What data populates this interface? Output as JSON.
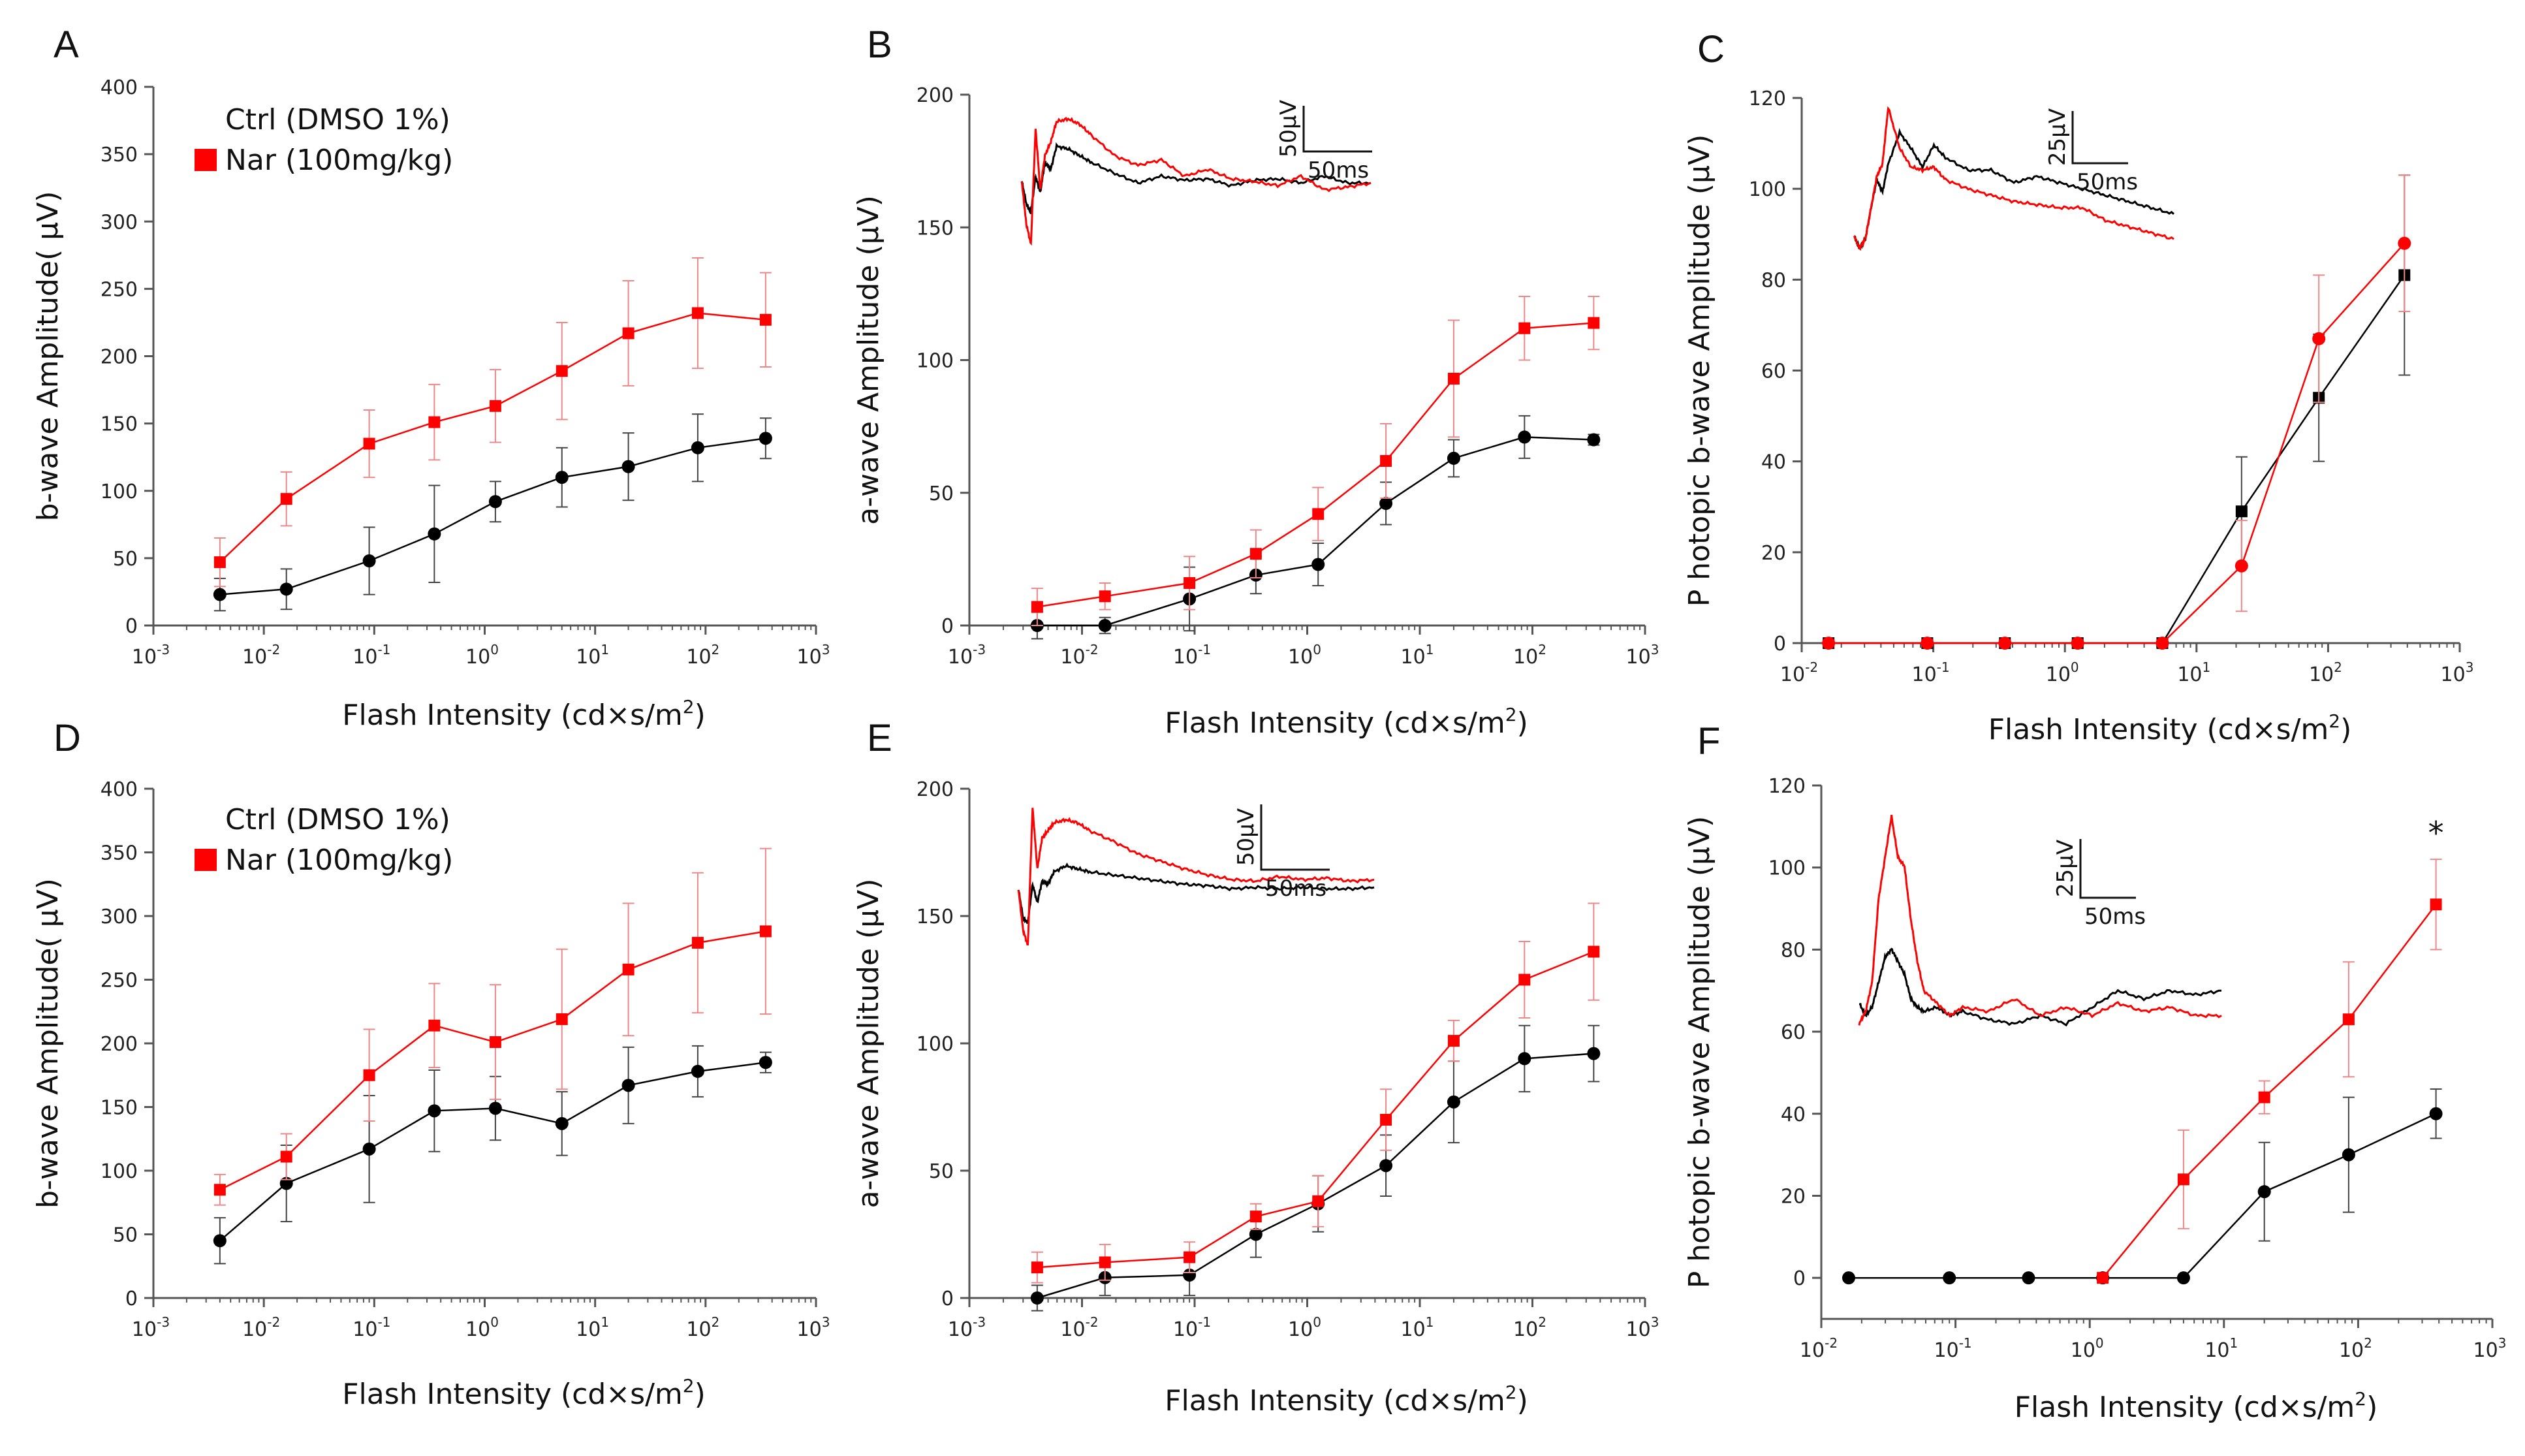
{
  "figure": {
    "colors": {
      "ctrl": "#000000",
      "nar": "#ff0000",
      "axis": "#555555"
    },
    "panels": [
      {
        "letter": "A",
        "legend": {
          "ctrl_label": "Ctrl (DMSO 1%)",
          "nar_label": "Nar (100mg/kg)"
        },
        "scale_bar": null,
        "significance": null,
        "chart_data": {
          "type": "line",
          "xscale": "log",
          "title": "",
          "xlabel": "Flash Intensity (cd×s/m2)",
          "ylabel": "b-wave Amplitude( µV)",
          "xlim_exp": [
            -3,
            3
          ],
          "ylim": [
            0,
            400
          ],
          "yticks": [
            0,
            50,
            100,
            150,
            200,
            250,
            300,
            350,
            400
          ],
          "series": [
            {
              "name": "Ctrl (DMSO 1%)",
              "marker": "circle",
              "x": [
                0.004,
                0.016,
                0.09,
                0.35,
                1.25,
                5,
                20,
                85,
                350
              ],
              "y": [
                23,
                27,
                48,
                68,
                92,
                110,
                118,
                132,
                139
              ],
              "err": [
                12,
                15,
                25,
                36,
                15,
                22,
                25,
                25,
                15
              ]
            },
            {
              "name": "Nar (100mg/kg)",
              "marker": "square",
              "x": [
                0.004,
                0.016,
                0.09,
                0.35,
                1.25,
                5,
                20,
                85,
                350
              ],
              "y": [
                47,
                94,
                135,
                151,
                163,
                189,
                217,
                232,
                227
              ],
              "err": [
                18,
                20,
                25,
                28,
                27,
                36,
                39,
                41,
                35
              ]
            }
          ],
          "inset": null
        }
      },
      {
        "letter": "B",
        "legend": null,
        "scale_bar": {
          "v_label": "50µV",
          "h_label": "50ms"
        },
        "significance": null,
        "chart_data": {
          "type": "line",
          "xscale": "log",
          "title": "",
          "xlabel": "Flash Intensity (cd×s/m2)",
          "ylabel": "a-wave Amplitude (µV)",
          "xlim_exp": [
            -3,
            3
          ],
          "ylim": [
            0,
            200
          ],
          "yticks": [
            0,
            50,
            100,
            150,
            200
          ],
          "series": [
            {
              "name": "Ctrl (DMSO 1%)",
              "marker": "circle",
              "x": [
                0.004,
                0.016,
                0.09,
                0.35,
                1.25,
                5,
                20,
                85,
                350
              ],
              "y": [
                0,
                0,
                10,
                19,
                23,
                46,
                63,
                71,
                70
              ],
              "err": [
                5,
                3,
                12,
                7,
                8,
                8,
                7,
                8,
                2
              ]
            },
            {
              "name": "Nar (100mg/kg)",
              "marker": "square",
              "x": [
                0.004,
                0.016,
                0.09,
                0.35,
                1.25,
                5,
                20,
                85,
                350
              ],
              "y": [
                7,
                11,
                16,
                27,
                42,
                62,
                93,
                112,
                114
              ],
              "err": [
                7,
                5,
                10,
                9,
                10,
                14,
                22,
                12,
                10
              ]
            }
          ],
          "inset": {
            "t_ms": [
              0,
              4,
              8,
              12,
              16,
              20,
              25,
              30,
              40,
              50,
              60,
              80,
              100,
              120,
              140,
              160,
              180,
              200,
              220,
              240,
              260,
              280,
              300
            ],
            "ctrl_uv": [
              147,
              130,
              123,
              150,
              138,
              160,
              155,
              172,
              170,
              165,
              160,
              152,
              145,
              150,
              147,
              148,
              143,
              147,
              148,
              145,
              150,
              145,
              145
            ],
            "nar_uv": [
              147,
              115,
              100,
              185,
              140,
              165,
              175,
              190,
              192,
              188,
              180,
              165,
              158,
              162,
              150,
              155,
              148,
              146,
              143,
              150,
              140,
              142,
              145
            ],
            "ylim_uv": [
              90,
              205
            ]
          }
        }
      },
      {
        "letter": "C",
        "legend": null,
        "scale_bar": {
          "v_label": "25µV",
          "h_label": "50ms"
        },
        "significance": null,
        "chart_data": {
          "type": "line",
          "xscale": "log",
          "title": "",
          "xlabel": "Flash Intensity (cd×s/m2)",
          "ylabel": "P hotopic b-wave Amplitude (µV)",
          "xlim_exp": [
            -2,
            3
          ],
          "ylim": [
            0,
            120
          ],
          "yticks": [
            0,
            20,
            40,
            60,
            80,
            100,
            120
          ],
          "series": [
            {
              "name": "Ctrl (DMSO 1%)",
              "marker": "square",
              "x": [
                0.016,
                0.09,
                0.35,
                1.25,
                5.5,
                22,
                85,
                380
              ],
              "y": [
                0,
                0,
                0,
                0,
                0,
                29,
                54,
                81
              ],
              "err": [
                0,
                0,
                0,
                0,
                0,
                12,
                14,
                22
              ]
            },
            {
              "name": "Nar (100mg/kg)",
              "marker": "circle",
              "x": [
                0.016,
                0.09,
                0.35,
                1.25,
                5.5,
                22,
                85,
                380
              ],
              "y": [
                0,
                0,
                0,
                0,
                0,
                17,
                67,
                88
              ],
              "err": [
                0,
                0,
                0,
                0,
                0,
                10,
                14,
                15
              ]
            }
          ],
          "inset": {
            "t_ms": [
              0,
              5,
              10,
              15,
              20,
              25,
              30,
              40,
              50,
              60,
              70,
              80,
              100,
              120,
              140,
              160,
              180,
              200,
              220,
              240,
              260,
              280
            ],
            "ctrl_uv": [
              77,
              73,
              76,
              86,
              95,
              91,
              100,
              110,
              105,
              99,
              106,
              102,
              98,
              98,
              94,
              96,
              94,
              92,
              90,
              88,
              86,
              84
            ],
            "nar_uv": [
              77,
              73,
              76,
              86,
              96,
              100,
              118,
              105,
              99,
              98,
              99,
              95,
              92,
              90,
              88,
              87,
              86,
              86,
              82,
              80,
              78,
              76
            ],
            "ylim_uv": [
              70,
              120
            ]
          }
        }
      },
      {
        "letter": "D",
        "legend": {
          "ctrl_label": "Ctrl (DMSO 1%)",
          "nar_label": "Nar (100mg/kg)"
        },
        "scale_bar": null,
        "significance": null,
        "chart_data": {
          "type": "line",
          "xscale": "log",
          "title": "",
          "xlabel": "Flash Intensity (cd×s/m2)",
          "ylabel": "b-wave Amplitude( µV)",
          "xlim_exp": [
            -3,
            3
          ],
          "ylim": [
            0,
            400
          ],
          "yticks": [
            0,
            50,
            100,
            150,
            200,
            250,
            300,
            350,
            400
          ],
          "series": [
            {
              "name": "Ctrl (DMSO 1%)",
              "marker": "circle",
              "x": [
                0.004,
                0.016,
                0.09,
                0.35,
                1.25,
                5,
                20,
                85,
                350
              ],
              "y": [
                45,
                90,
                117,
                147,
                149,
                137,
                167,
                178,
                185
              ],
              "err": [
                18,
                30,
                42,
                32,
                25,
                25,
                30,
                20,
                8
              ]
            },
            {
              "name": "Nar (100mg/kg)",
              "marker": "square",
              "x": [
                0.004,
                0.016,
                0.09,
                0.35,
                1.25,
                5,
                20,
                85,
                350
              ],
              "y": [
                85,
                111,
                175,
                214,
                201,
                219,
                258,
                279,
                288
              ],
              "err": [
                12,
                18,
                36,
                33,
                45,
                55,
                52,
                55,
                65
              ]
            }
          ],
          "inset": null
        }
      },
      {
        "letter": "E",
        "legend": null,
        "scale_bar": {
          "v_label": "50µV",
          "h_label": "50ms"
        },
        "significance": null,
        "chart_data": {
          "type": "line",
          "xscale": "log",
          "title": "",
          "xlabel": "Flash Intensity (cd×s/m2)",
          "ylabel": "a-wave Amplitude (µV)",
          "xlim_exp": [
            -3,
            3
          ],
          "ylim": [
            0,
            200
          ],
          "yticks": [
            0,
            50,
            100,
            150,
            200
          ],
          "series": [
            {
              "name": "Ctrl (DMSO 1%)",
              "marker": "circle",
              "x": [
                0.004,
                0.016,
                0.09,
                0.35,
                1.25,
                5,
                20,
                85,
                350
              ],
              "y": [
                0,
                8,
                9,
                25,
                37,
                52,
                77,
                94,
                96
              ],
              "err": [
                5,
                7,
                8,
                9,
                11,
                12,
                16,
                13,
                11
              ]
            },
            {
              "name": "Nar (100mg/kg)",
              "marker": "square",
              "x": [
                0.004,
                0.016,
                0.09,
                0.35,
                1.25,
                5,
                20,
                85,
                350
              ],
              "y": [
                12,
                14,
                16,
                32,
                38,
                70,
                101,
                125,
                136
              ],
              "err": [
                6,
                7,
                6,
                5,
                10,
                12,
                8,
                15,
                19
              ]
            }
          ],
          "inset": {
            "t_ms": [
              0,
              4,
              8,
              12,
              16,
              20,
              25,
              30,
              40,
              50,
              60,
              80,
              100,
              120,
              140,
              160,
              180,
              200,
              220,
              240,
              260,
              280,
              300
            ],
            "ctrl_uv": [
              137,
              118,
              115,
              140,
              128,
              142,
              140,
              148,
              152,
              150,
              148,
              146,
              144,
              142,
              140,
              139,
              137,
              138,
              137,
              138,
              137,
              137,
              138
            ],
            "nar_uv": [
              137,
              110,
              100,
              190,
              150,
              170,
              175,
              180,
              182,
              180,
              175,
              168,
              160,
              155,
              150,
              146,
              143,
              142,
              145,
              143,
              144,
              142,
              143
            ],
            "ylim_uv": [
              95,
              195
            ]
          }
        }
      },
      {
        "letter": "F",
        "legend": null,
        "scale_bar": {
          "v_label": "25µV",
          "h_label": "50ms"
        },
        "significance": {
          "label": "*",
          "x": 380,
          "y": 108
        },
        "chart_data": {
          "type": "line",
          "xscale": "log",
          "title": "",
          "xlabel": "Flash Intensity (cd×s/m2)",
          "ylabel": "P hotopic b-wave Amplitude (µV)",
          "xlim_exp": [
            -2,
            3
          ],
          "ylim": [
            -10,
            120
          ],
          "yticks": [
            0,
            20,
            40,
            60,
            80,
            100,
            120
          ],
          "series": [
            {
              "name": "Ctrl (DMSO 1%)",
              "marker": "circle",
              "x": [
                0.016,
                0.09,
                0.35,
                1.25,
                5,
                20,
                85,
                380
              ],
              "y": [
                0,
                0,
                0,
                0,
                0,
                21,
                30,
                40
              ],
              "err": [
                0,
                0,
                0,
                0,
                0,
                12,
                14,
                6
              ]
            },
            {
              "name": "Nar (100mg/kg)",
              "marker": "square",
              "x": [
                1.25,
                5,
                20,
                85,
                380
              ],
              "y": [
                0,
                24,
                44,
                63,
                91
              ],
              "err": [
                0,
                12,
                4,
                14,
                11
              ]
            }
          ],
          "inset": {
            "t_ms": [
              0,
              5,
              10,
              15,
              20,
              25,
              30,
              35,
              40,
              45,
              50,
              60,
              70,
              80,
              100,
              120,
              140,
              160,
              180,
              200,
              220,
              240,
              260,
              280
            ],
            "ctrl_uv": [
              65,
              62,
              64,
              70,
              76,
              78,
              75,
              72,
              66,
              64,
              63,
              64,
              62,
              63,
              61,
              60,
              62,
              60,
              64,
              68,
              66,
              68,
              67,
              68
            ],
            "nar_uv": [
              60,
              63,
              70,
              90,
              100,
              110,
              100,
              98,
              85,
              75,
              68,
              65,
              62,
              64,
              63,
              66,
              62,
              64,
              62,
              65,
              63,
              64,
              62,
              62
            ],
            "ylim_uv": [
              55,
              115
            ]
          }
        }
      }
    ]
  }
}
